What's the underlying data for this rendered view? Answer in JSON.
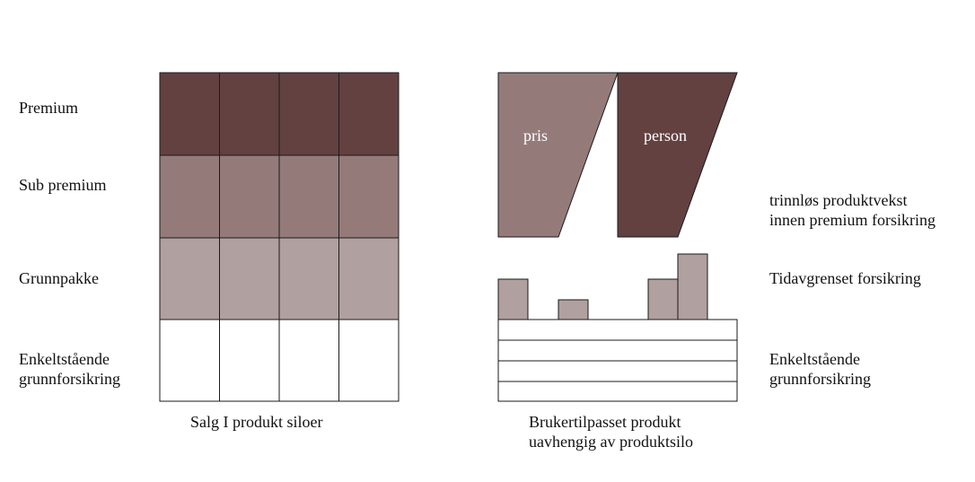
{
  "colors": {
    "premium": "#634141",
    "sub_premium": "#947b7a",
    "grunnpakke": "#b0a09f",
    "base": "#ffffff",
    "stroke": "#1a1a1a",
    "text_light": "#ffffff"
  },
  "left_labels": {
    "premium": "Premium",
    "sub_premium": "Sub premium",
    "grunnpakke": "Grunnpakke",
    "enkeltstaaende": "Enkeltstående\ngrunnforsikring"
  },
  "right_labels": {
    "trinnlos": "trinnløs produktvekst\ninnen premium forsikring",
    "tidavgrenset": "Tidavgrenset forsikring",
    "enkeltstaaende": "Enkeltstående\ngrunnforsikring"
  },
  "shapes": {
    "pris": "pris",
    "person": "person"
  },
  "captions": {
    "left": "Salg I produkt siloer",
    "right": "Brukertilpasset produkt\nuavhengig av produktsilo"
  }
}
